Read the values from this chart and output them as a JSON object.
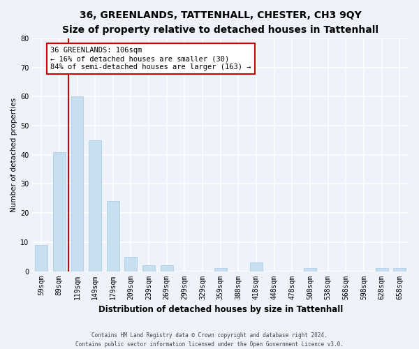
{
  "title": "36, GREENLANDS, TATTENHALL, CHESTER, CH3 9QY",
  "subtitle": "Size of property relative to detached houses in Tattenhall",
  "xlabel": "Distribution of detached houses by size in Tattenhall",
  "ylabel": "Number of detached properties",
  "bar_labels": [
    "59sqm",
    "89sqm",
    "119sqm",
    "149sqm",
    "179sqm",
    "209sqm",
    "239sqm",
    "269sqm",
    "299sqm",
    "329sqm",
    "359sqm",
    "388sqm",
    "418sqm",
    "448sqm",
    "478sqm",
    "508sqm",
    "538sqm",
    "568sqm",
    "598sqm",
    "628sqm",
    "658sqm"
  ],
  "bar_values": [
    9,
    41,
    60,
    45,
    24,
    5,
    2,
    2,
    0,
    0,
    1,
    0,
    3,
    0,
    0,
    1,
    0,
    0,
    0,
    1,
    1
  ],
  "bar_color": "#c8dff0",
  "bar_edge_color": "#a8c8e8",
  "vline_x": 1.5,
  "vline_color": "#cc0000",
  "annotation_title": "36 GREENLANDS: 106sqm",
  "annotation_line1": "← 16% of detached houses are smaller (30)",
  "annotation_line2": "84% of semi-detached houses are larger (163) →",
  "annotation_box_color": "white",
  "annotation_box_edge": "#cc0000",
  "ylim": [
    0,
    80
  ],
  "yticks": [
    0,
    10,
    20,
    30,
    40,
    50,
    60,
    70,
    80
  ],
  "footer1": "Contains HM Land Registry data © Crown copyright and database right 2024.",
  "footer2": "Contains public sector information licensed under the Open Government Licence v3.0.",
  "bg_color": "#eef2fa",
  "plot_bg_color": "#eef2fa",
  "grid_color": "#ffffff",
  "title_fontsize": 10,
  "subtitle_fontsize": 9,
  "xlabel_fontsize": 8.5,
  "ylabel_fontsize": 7.5,
  "tick_fontsize": 7,
  "annotation_fontsize": 7.5
}
